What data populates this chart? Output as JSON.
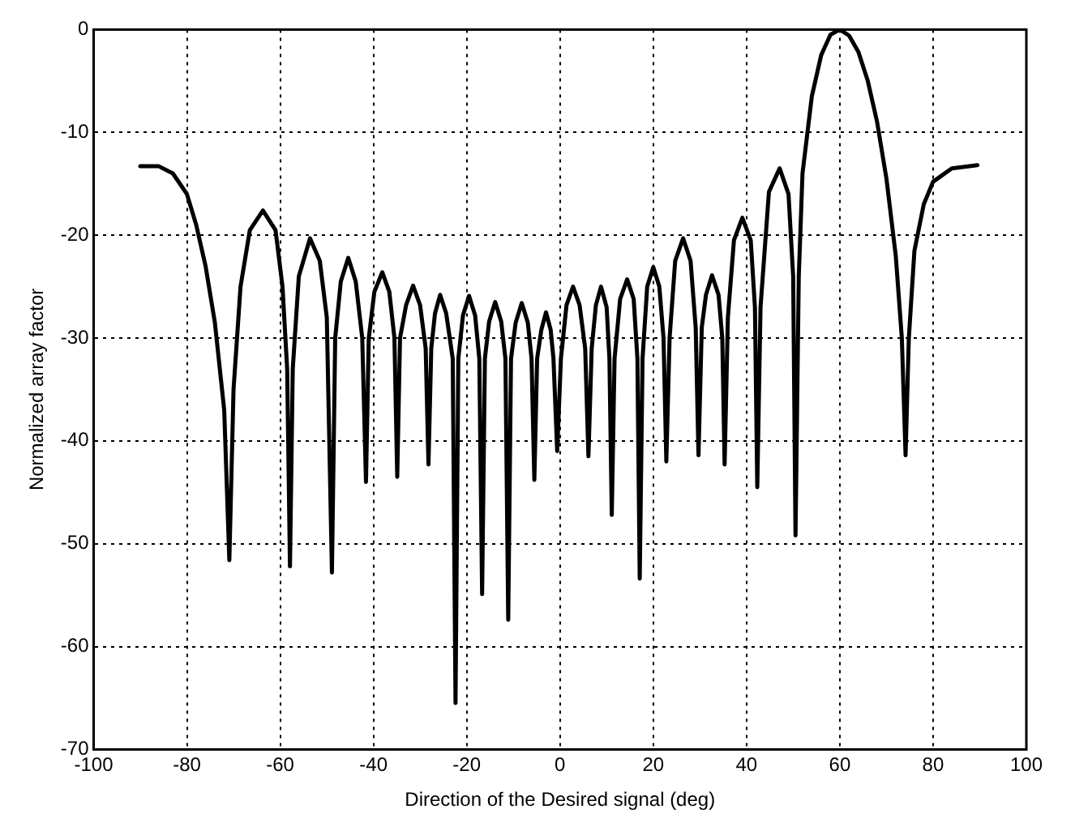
{
  "chart_data": {
    "type": "line",
    "xlabel": "Direction of the Desired signal (deg)",
    "ylabel": "Normalized array factor",
    "xlim": [
      -100,
      100
    ],
    "xticks": [
      -100,
      -80,
      -60,
      -40,
      -20,
      0,
      20,
      40,
      60,
      80,
      100
    ],
    "ylim": [
      -70,
      0
    ],
    "yticks": [
      -70,
      -60,
      -50,
      -40,
      -30,
      -20,
      -10,
      0
    ],
    "grid": true,
    "legend": false,
    "marker": "none",
    "line_style": "solid",
    "series": [
      {
        "color": "#000000",
        "x": [
          -90,
          -86,
          -83,
          -80,
          -78,
          -76,
          -74,
          -72,
          -70.9,
          -70,
          -68.5,
          -66.5,
          -63.7,
          -61,
          -59.5,
          -58.5,
          -57.9,
          -57.3,
          -56,
          -53.6,
          -51.5,
          -50,
          -48.9,
          -48.2,
          -47,
          -45.4,
          -43.8,
          -42.4,
          -41.6,
          -41,
          -39.8,
          -38.1,
          -36.6,
          -35.5,
          -34.9,
          -34.3,
          -33,
          -31.5,
          -30,
          -28.8,
          -28.2,
          -27.6,
          -26.8,
          -25.7,
          -24.4,
          -23,
          -22.4,
          -21.8,
          -20.8,
          -19.5,
          -18.2,
          -17.3,
          -16.7,
          -16.1,
          -15.2,
          -13.9,
          -12.6,
          -11.7,
          -11.1,
          -10.5,
          -9.5,
          -8.2,
          -6.9,
          -6.1,
          -5.5,
          -4.9,
          -4,
          -3,
          -2,
          -1.4,
          -0.6,
          0.2,
          1.4,
          2.8,
          4.2,
          5.4,
          6.1,
          6.8,
          7.7,
          8.8,
          10,
          10.6,
          11.1,
          11.7,
          12.9,
          14.4,
          15.8,
          16.6,
          17.1,
          17.7,
          18.7,
          20,
          21.3,
          22.2,
          22.8,
          23.5,
          24.7,
          26.4,
          28,
          29.1,
          29.7,
          30.4,
          31.3,
          32.6,
          34,
          34.8,
          35.3,
          36,
          37.3,
          39.1,
          40.9,
          41.8,
          42.3,
          43,
          44.8,
          47.1,
          49,
          50,
          50.5,
          51.2,
          52,
          54,
          56,
          58,
          60,
          62,
          64,
          66,
          68,
          70,
          72,
          73.3,
          74.1,
          74.8,
          76,
          78,
          80,
          84,
          89.5
        ],
        "values": [
          -13.3,
          -13.3,
          -14,
          -16,
          -19,
          -23,
          -28.5,
          -37,
          -51.6,
          -35,
          -25,
          -19.5,
          -17.6,
          -19.5,
          -25,
          -33,
          -52.2,
          -33,
          -24,
          -20.3,
          -22.5,
          -28,
          -52.8,
          -30,
          -24.5,
          -22.2,
          -24.5,
          -30,
          -44,
          -30,
          -25.5,
          -23.6,
          -25.5,
          -30,
          -43.5,
          -30,
          -26.8,
          -24.9,
          -26.8,
          -31,
          -42.3,
          -31,
          -27.6,
          -25.8,
          -27.6,
          -32,
          -65.5,
          -32,
          -27.8,
          -25.9,
          -27.8,
          -32,
          -54.9,
          -32,
          -28.4,
          -26.5,
          -28.4,
          -32,
          -57.4,
          -32,
          -28.5,
          -26.6,
          -28.5,
          -32,
          -43.8,
          -32,
          -29.2,
          -27.5,
          -29.2,
          -32,
          -41,
          -32,
          -26.8,
          -25,
          -26.8,
          -31,
          -41.5,
          -31,
          -26.8,
          -25,
          -27,
          -32,
          -47.2,
          -32,
          -26.2,
          -24.3,
          -26.2,
          -32,
          -53.4,
          -32,
          -25,
          -23.1,
          -25,
          -30,
          -42,
          -30,
          -22.5,
          -20.3,
          -22.5,
          -29,
          -41.4,
          -29,
          -25.8,
          -23.9,
          -25.8,
          -30,
          -42.3,
          -28,
          -20.5,
          -18.3,
          -20.5,
          -27,
          -44.5,
          -27,
          -15.8,
          -13.5,
          -16,
          -24,
          -49.2,
          -24,
          -14,
          -6.5,
          -2.5,
          -0.5,
          0,
          -0.6,
          -2.2,
          -5,
          -9,
          -14.5,
          -22,
          -30,
          -41.4,
          -30,
          -21.5,
          -17,
          -14.8,
          -13.5,
          -13.2
        ]
      }
    ]
  }
}
